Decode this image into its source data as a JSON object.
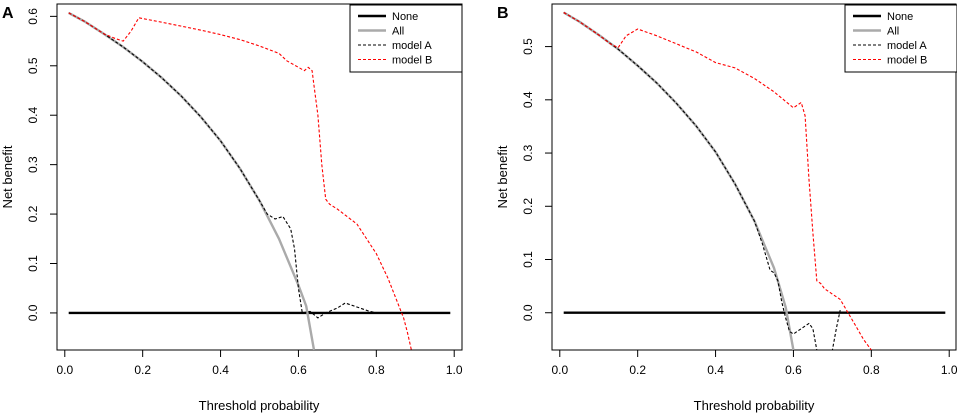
{
  "chart_data": [
    {
      "type": "line",
      "panel_label": "A",
      "xlabel": "Threshold probability",
      "ylabel": "Net benefit",
      "xlim": [
        -0.02,
        1.02
      ],
      "ylim": [
        -0.075,
        0.625
      ],
      "xticks": [
        0.0,
        0.2,
        0.4,
        0.6,
        0.8,
        1.0
      ],
      "xtick_labels": [
        "0.0",
        "0.2",
        "0.4",
        "0.6",
        "0.8",
        "1.0"
      ],
      "yticks": [
        0.0,
        0.1,
        0.2,
        0.3,
        0.4,
        0.5,
        0.6
      ],
      "ytick_labels": [
        "0.0",
        "0.1",
        "0.2",
        "0.3",
        "0.4",
        "0.5",
        "0.6"
      ],
      "legend_position": "top-right",
      "series": [
        {
          "name": "None",
          "style": "solid",
          "color": "#000000",
          "x": [
            0.01,
            0.99
          ],
          "y": [
            0.0,
            0.0
          ]
        },
        {
          "name": "All",
          "style": "solid",
          "color": "#aaaaaa",
          "x": [
            0.01,
            0.05,
            0.1,
            0.15,
            0.2,
            0.25,
            0.3,
            0.35,
            0.4,
            0.45,
            0.5,
            0.55,
            0.6,
            0.62,
            0.64
          ],
          "y": [
            0.607,
            0.59,
            0.565,
            0.538,
            0.508,
            0.475,
            0.438,
            0.396,
            0.348,
            0.292,
            0.227,
            0.15,
            0.056,
            0.014,
            -0.075
          ]
        },
        {
          "name": "model A",
          "style": "dashed",
          "color": "#000000",
          "x": [
            0.01,
            0.05,
            0.1,
            0.15,
            0.2,
            0.25,
            0.3,
            0.35,
            0.4,
            0.45,
            0.5,
            0.52,
            0.54,
            0.56,
            0.58,
            0.59,
            0.6,
            0.61,
            0.63,
            0.65,
            0.67,
            0.7,
            0.72,
            0.75,
            0.78,
            0.8
          ],
          "y": [
            0.607,
            0.59,
            0.565,
            0.538,
            0.508,
            0.475,
            0.438,
            0.396,
            0.348,
            0.292,
            0.227,
            0.2,
            0.19,
            0.195,
            0.17,
            0.13,
            0.05,
            0.0,
            0.003,
            -0.01,
            0.0,
            0.01,
            0.02,
            0.012,
            0.004,
            0.0
          ]
        },
        {
          "name": "model B",
          "style": "dashed",
          "color": "#ff0000",
          "x": [
            0.01,
            0.05,
            0.1,
            0.13,
            0.15,
            0.17,
            0.19,
            0.25,
            0.3,
            0.35,
            0.4,
            0.45,
            0.5,
            0.55,
            0.57,
            0.6,
            0.615,
            0.625,
            0.635,
            0.64,
            0.65,
            0.66,
            0.67,
            0.68,
            0.7,
            0.75,
            0.8,
            0.83,
            0.85,
            0.87,
            0.88,
            0.89
          ],
          "y": [
            0.607,
            0.59,
            0.565,
            0.555,
            0.55,
            0.57,
            0.597,
            0.588,
            0.58,
            0.572,
            0.563,
            0.553,
            0.54,
            0.525,
            0.51,
            0.497,
            0.49,
            0.497,
            0.49,
            0.46,
            0.4,
            0.3,
            0.23,
            0.22,
            0.21,
            0.18,
            0.12,
            0.07,
            0.03,
            -0.01,
            -0.04,
            -0.075
          ]
        }
      ]
    },
    {
      "type": "line",
      "panel_label": "B",
      "xlabel": "Threshold probability",
      "ylabel": "Net benefit",
      "xlim": [
        -0.02,
        1.02
      ],
      "ylim": [
        -0.07,
        0.58
      ],
      "xticks": [
        0.0,
        0.2,
        0.4,
        0.6,
        0.8,
        1.0
      ],
      "xtick_labels": [
        "0.0",
        "0.2",
        "0.4",
        "0.6",
        "0.8",
        "1.0"
      ],
      "yticks": [
        0.0,
        0.1,
        0.2,
        0.3,
        0.4,
        0.5
      ],
      "ytick_labels": [
        "0.0",
        "0.1",
        "0.2",
        "0.3",
        "0.4",
        "0.5"
      ],
      "legend_position": "top-right",
      "series": [
        {
          "name": "None",
          "style": "solid",
          "color": "#000000",
          "x": [
            0.01,
            0.99
          ],
          "y": [
            0.0,
            0.0
          ]
        },
        {
          "name": "All",
          "style": "solid",
          "color": "#aaaaaa",
          "x": [
            0.01,
            0.05,
            0.1,
            0.15,
            0.2,
            0.25,
            0.3,
            0.35,
            0.4,
            0.45,
            0.5,
            0.55,
            0.58,
            0.6
          ],
          "y": [
            0.564,
            0.547,
            0.522,
            0.495,
            0.464,
            0.431,
            0.393,
            0.351,
            0.302,
            0.242,
            0.172,
            0.084,
            0.01,
            -0.07
          ]
        },
        {
          "name": "model A",
          "style": "dashed",
          "color": "#000000",
          "x": [
            0.01,
            0.05,
            0.1,
            0.15,
            0.2,
            0.25,
            0.3,
            0.35,
            0.4,
            0.45,
            0.5,
            0.52,
            0.54,
            0.55,
            0.56,
            0.57,
            0.58,
            0.59,
            0.6,
            0.62,
            0.64,
            0.65,
            0.66,
            0.67,
            0.68,
            0.7,
            0.71,
            0.72
          ],
          "y": [
            0.564,
            0.547,
            0.522,
            0.495,
            0.464,
            0.431,
            0.393,
            0.351,
            0.302,
            0.242,
            0.172,
            0.13,
            0.08,
            0.075,
            0.06,
            0.02,
            -0.01,
            -0.035,
            -0.04,
            -0.03,
            -0.02,
            -0.03,
            -0.07,
            -0.07,
            -0.07,
            -0.07,
            -0.03,
            0.005
          ]
        },
        {
          "name": "model B",
          "style": "dashed",
          "color": "#ff0000",
          "x": [
            0.01,
            0.05,
            0.1,
            0.13,
            0.15,
            0.17,
            0.2,
            0.25,
            0.3,
            0.35,
            0.4,
            0.45,
            0.5,
            0.55,
            0.6,
            0.62,
            0.63,
            0.64,
            0.65,
            0.66,
            0.67,
            0.68,
            0.69,
            0.7,
            0.72,
            0.74,
            0.76,
            0.78,
            0.8
          ],
          "y": [
            0.564,
            0.547,
            0.522,
            0.505,
            0.498,
            0.52,
            0.533,
            0.52,
            0.505,
            0.49,
            0.47,
            0.46,
            0.44,
            0.415,
            0.385,
            0.395,
            0.37,
            0.25,
            0.15,
            0.06,
            0.055,
            0.045,
            0.04,
            0.035,
            0.025,
            0.0,
            -0.025,
            -0.05,
            -0.07
          ]
        }
      ]
    }
  ]
}
